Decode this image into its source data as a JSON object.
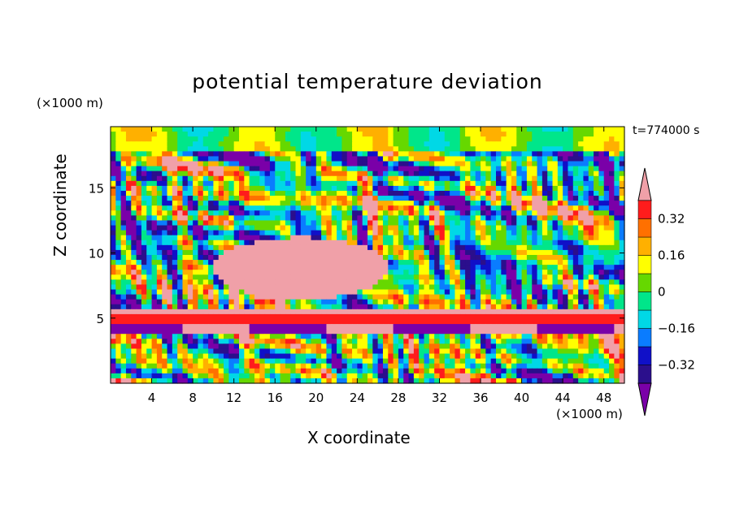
{
  "chart_data": {
    "type": "heatmap",
    "title": "potential temperature deviation",
    "xlabel": "X coordinate",
    "ylabel": "Z coordinate",
    "x_unit": "(×1000 m)",
    "y_unit": "(×1000 m)",
    "time_label": "t=774000 s",
    "xlim": [
      0,
      50
    ],
    "ylim": [
      0,
      19.7
    ],
    "x_ticks": [
      4,
      8,
      12,
      16,
      20,
      24,
      28,
      32,
      36,
      40,
      44,
      48
    ],
    "y_ticks": [
      5,
      10,
      15
    ],
    "colorbar": {
      "levels": [
        -0.4,
        -0.32,
        -0.24,
        -0.16,
        -0.08,
        0,
        0.08,
        0.16,
        0.24,
        0.32,
        0.4
      ],
      "tick_labels": [
        "0.32",
        "0.16",
        "0",
        "−0.16",
        "−0.32"
      ],
      "tick_values": [
        0.32,
        0.16,
        0,
        -0.16,
        -0.32
      ],
      "colors": [
        "#7a00a8",
        "#2b0f8c",
        "#1010c8",
        "#0a7cff",
        "#00d8e6",
        "#00e68a",
        "#66d800",
        "#ffff00",
        "#ffb000",
        "#ff7000",
        "#ff1c1c",
        "#f0a0a8"
      ],
      "extend": "both"
    },
    "description_free": true
  }
}
